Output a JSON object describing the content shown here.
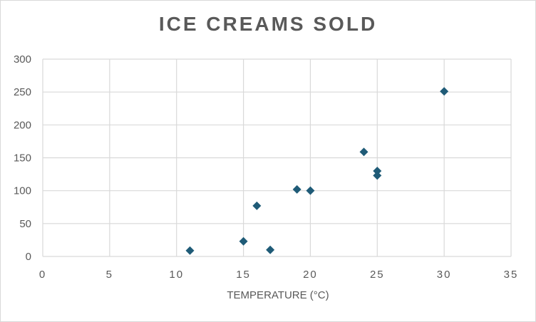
{
  "chart_data": {
    "type": "scatter",
    "title": "ICE CREAMS SOLD",
    "xlabel": "TEMPERATURE (°C)",
    "ylabel": "",
    "xlim": [
      0,
      35
    ],
    "ylim": [
      0,
      300
    ],
    "x_ticks": [
      "0",
      "5",
      "10",
      "15",
      "20",
      "25",
      "30",
      "35"
    ],
    "y_ticks": [
      "0",
      "50",
      "100",
      "150",
      "200",
      "250",
      "300"
    ],
    "grid": true,
    "marker": "diamond",
    "marker_color": "#1F5B77",
    "grid_color": "#d9d9d9",
    "points": [
      {
        "x": 11,
        "y": 9
      },
      {
        "x": 15,
        "y": 23
      },
      {
        "x": 16,
        "y": 77
      },
      {
        "x": 17,
        "y": 10
      },
      {
        "x": 19,
        "y": 102
      },
      {
        "x": 20,
        "y": 100
      },
      {
        "x": 24,
        "y": 159
      },
      {
        "x": 25,
        "y": 130
      },
      {
        "x": 25,
        "y": 123
      },
      {
        "x": 30,
        "y": 251
      }
    ]
  }
}
